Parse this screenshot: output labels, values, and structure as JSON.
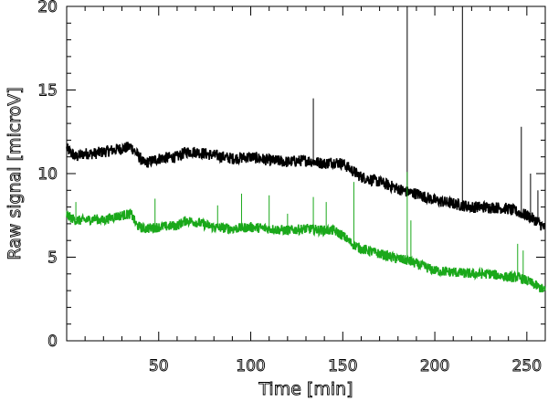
{
  "chart_data": {
    "type": "line",
    "title": "",
    "xlabel": "Time [min]",
    "ylabel": "Raw signal [microV]",
    "xlim": [
      0,
      260
    ],
    "ylim": [
      0,
      20
    ],
    "x_ticks": [
      50,
      100,
      150,
      200,
      250
    ],
    "x_tick_labels": [
      "50",
      "100",
      "150",
      "200",
      "250"
    ],
    "y_ticks": [
      0,
      5,
      10,
      15,
      20
    ],
    "y_tick_labels": [
      "0",
      "5",
      "10",
      "15",
      "20"
    ],
    "grid": false,
    "legend": "none",
    "series": [
      {
        "color": "#000000",
        "noise": 0.35,
        "x": [
          0,
          5,
          10,
          15,
          20,
          25,
          30,
          35,
          38,
          42,
          50,
          60,
          65,
          70,
          80,
          90,
          100,
          110,
          120,
          130,
          140,
          145,
          150,
          155,
          160,
          170,
          180,
          185,
          190,
          200,
          210,
          220,
          230,
          240,
          245,
          250,
          255,
          260
        ],
        "values": [
          11.5,
          11.0,
          11.2,
          11.2,
          11.3,
          11.4,
          11.5,
          11.6,
          11.2,
          10.6,
          10.9,
          11.0,
          11.3,
          11.3,
          11.1,
          10.9,
          11.0,
          10.8,
          10.7,
          10.8,
          10.6,
          10.7,
          10.6,
          10.2,
          9.8,
          9.5,
          9.1,
          8.9,
          8.8,
          8.4,
          8.2,
          8.0,
          8.0,
          7.9,
          7.7,
          7.5,
          7.2,
          6.7
        ],
        "spikes": [
          [
            134,
            14.5
          ],
          [
            185,
            20.0
          ],
          [
            215,
            20.0
          ],
          [
            247,
            12.8
          ],
          [
            252,
            10.0
          ],
          [
            256,
            9.0
          ]
        ]
      },
      {
        "color": "#1aa81a",
        "noise": 0.3,
        "x": [
          0,
          5,
          10,
          15,
          20,
          25,
          30,
          35,
          38,
          42,
          50,
          60,
          65,
          70,
          80,
          90,
          100,
          110,
          120,
          130,
          140,
          145,
          150,
          155,
          160,
          170,
          180,
          185,
          190,
          200,
          210,
          220,
          230,
          240,
          245,
          250,
          255,
          260
        ],
        "values": [
          7.5,
          7.2,
          7.2,
          7.3,
          7.2,
          7.4,
          7.5,
          7.6,
          6.9,
          6.7,
          6.8,
          6.9,
          7.2,
          7.1,
          6.8,
          6.7,
          6.8,
          6.7,
          6.6,
          6.7,
          6.6,
          6.6,
          6.3,
          5.8,
          5.5,
          5.2,
          4.9,
          4.8,
          4.6,
          4.2,
          4.1,
          4.0,
          4.0,
          3.8,
          3.8,
          3.6,
          3.3,
          3.0
        ],
        "spikes": [
          [
            5,
            8.3
          ],
          [
            48,
            8.5
          ],
          [
            82,
            8.1
          ],
          [
            95,
            8.8
          ],
          [
            110,
            8.7
          ],
          [
            120,
            7.6
          ],
          [
            134,
            8.6
          ],
          [
            141,
            8.3
          ],
          [
            156,
            9.5
          ],
          [
            185,
            10.1
          ],
          [
            187,
            7.2
          ],
          [
            245,
            5.8
          ],
          [
            248,
            5.4
          ]
        ]
      }
    ]
  }
}
